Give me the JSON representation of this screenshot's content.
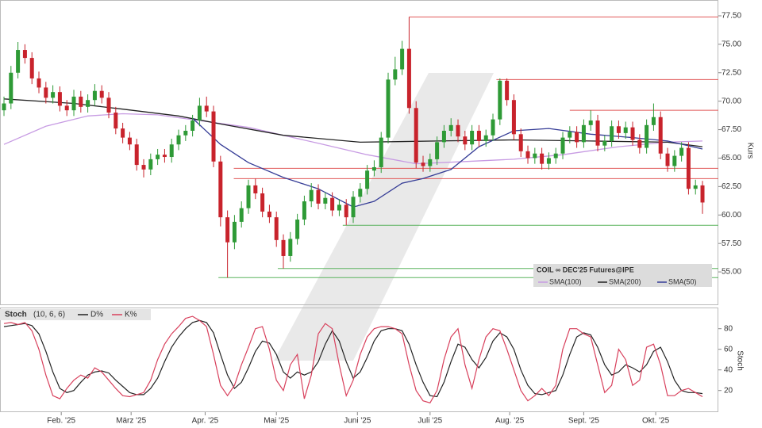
{
  "chart_data": [
    {
      "type": "candlestick",
      "title": "COIL ∞ DEC'25 Futures@IPE",
      "ylabel": "Kurs",
      "up_color": "#2e9a36",
      "down_color": "#c8232c",
      "xlim": [
        -0.57,
        102.27
      ],
      "ylim": [
        52.08,
        78.89
      ],
      "yticks": [
        {
          "value": 55,
          "label": "55.00"
        },
        {
          "value": 57.5,
          "label": "57.50"
        },
        {
          "value": 60,
          "label": "60.00"
        },
        {
          "value": 62.5,
          "label": "62.50"
        },
        {
          "value": 65,
          "label": "65.00"
        },
        {
          "value": 67.5,
          "label": "67.50"
        },
        {
          "value": 70,
          "label": "70.00"
        },
        {
          "value": 72.5,
          "label": "72.50"
        },
        {
          "value": 75,
          "label": "75.00"
        },
        {
          "value": 77.5,
          "label": "77.50"
        }
      ],
      "open": [
        69.2,
        69.8,
        72.5,
        74.5,
        73.8,
        72.0,
        71.2,
        70.3,
        70.8,
        69.6,
        69.2,
        70.4,
        69.5,
        70.1,
        70.9,
        70.3,
        69.0,
        67.6,
        66.8,
        66.2,
        64.4,
        64.0,
        64.9,
        65.3,
        65.1,
        66.2,
        67.0,
        67.4,
        68.3,
        69.6,
        69.1,
        64.7,
        59.8,
        57.6,
        59.4,
        60.6,
        62.6,
        61.9,
        60.3,
        59.8,
        57.8,
        56.4,
        57.9,
        59.6,
        61.2,
        62.2,
        61.0,
        61.5,
        60.4,
        60.9,
        59.8,
        61.6,
        62.3,
        63.9,
        64.2,
        66.8,
        71.9,
        72.8,
        74.6,
        69.4,
        64.6,
        64.3,
        64.9,
        66.4,
        67.4,
        67.9,
        66.9,
        66.2,
        67.4,
        66.5,
        67.0,
        68.4,
        71.8,
        70.1,
        67.1,
        65.6,
        65.0,
        65.4,
        64.5,
        65.0,
        65.4,
        66.8,
        67.3,
        66.4,
        67.9,
        68.3,
        66.1,
        66.5,
        67.8,
        67.2,
        67.7,
        66.6,
        65.9,
        67.9,
        68.6,
        65.4,
        64.3,
        65.2,
        65.9,
        62.3,
        62.6
      ],
      "high": [
        70.4,
        73.1,
        75.2,
        75.0,
        74.3,
        72.6,
        71.7,
        71.4,
        71.3,
        70.1,
        71.0,
        70.9,
        70.6,
        71.5,
        71.4,
        70.8,
        69.5,
        68.1,
        67.3,
        66.7,
        64.9,
        65.4,
        65.8,
        65.8,
        66.7,
        67.5,
        67.9,
        68.8,
        70.3,
        70.4,
        69.6,
        65.2,
        60.4,
        60.0,
        61.2,
        63.1,
        63.2,
        62.4,
        60.9,
        60.3,
        58.3,
        58.5,
        60.1,
        61.7,
        62.8,
        62.7,
        62.0,
        62.0,
        61.4,
        61.4,
        62.1,
        62.8,
        64.4,
        64.8,
        67.3,
        72.5,
        73.9,
        75.3,
        77.4,
        70.0,
        65.2,
        65.4,
        66.9,
        67.9,
        68.5,
        68.4,
        67.4,
        67.9,
        67.9,
        67.5,
        68.9,
        72.0,
        72.0,
        70.6,
        67.6,
        66.1,
        65.9,
        65.9,
        65.5,
        65.9,
        67.3,
        67.8,
        67.8,
        68.4,
        69.2,
        68.8,
        67.0,
        68.3,
        68.3,
        68.2,
        68.2,
        67.1,
        68.4,
        69.8,
        69.1,
        65.9,
        65.7,
        66.4,
        66.4,
        63.1,
        63.0
      ],
      "low": [
        68.7,
        69.3,
        72.0,
        73.3,
        71.5,
        70.7,
        69.8,
        69.8,
        69.1,
        68.7,
        68.7,
        69.0,
        69.0,
        69.6,
        69.8,
        68.5,
        67.1,
        66.3,
        65.7,
        63.9,
        63.3,
        63.5,
        64.4,
        64.6,
        64.6,
        65.7,
        66.5,
        66.9,
        67.8,
        68.6,
        64.2,
        59.0,
        54.5,
        57.0,
        58.9,
        60.1,
        61.4,
        59.8,
        59.3,
        57.2,
        55.3,
        55.9,
        57.4,
        59.1,
        60.7,
        60.5,
        60.5,
        59.9,
        59.9,
        59.1,
        59.3,
        61.1,
        61.8,
        63.4,
        63.7,
        66.3,
        71.4,
        72.3,
        68.9,
        64.1,
        63.8,
        63.8,
        64.4,
        65.9,
        66.9,
        66.4,
        65.7,
        65.7,
        66.0,
        66.0,
        66.5,
        67.9,
        69.6,
        66.6,
        65.1,
        64.5,
        64.5,
        64.0,
        64.0,
        64.5,
        64.9,
        66.3,
        65.9,
        65.9,
        67.4,
        65.6,
        65.6,
        66.0,
        66.7,
        66.7,
        66.1,
        65.4,
        65.4,
        67.4,
        64.9,
        63.8,
        63.8,
        64.7,
        61.8,
        61.8,
        60.1
      ],
      "close": [
        69.8,
        72.5,
        74.5,
        73.8,
        72.0,
        71.2,
        70.3,
        70.8,
        69.6,
        69.2,
        70.4,
        69.5,
        70.1,
        70.9,
        70.3,
        69.0,
        67.6,
        66.8,
        66.2,
        64.4,
        64.0,
        64.9,
        65.3,
        65.1,
        66.2,
        67.0,
        67.4,
        68.3,
        69.6,
        69.1,
        64.7,
        59.8,
        57.6,
        59.4,
        60.6,
        62.6,
        61.9,
        60.3,
        59.8,
        57.8,
        56.4,
        57.9,
        59.6,
        61.2,
        62.2,
        61.0,
        61.5,
        60.4,
        60.9,
        59.8,
        61.6,
        62.3,
        63.9,
        64.2,
        66.8,
        71.9,
        72.8,
        74.6,
        69.4,
        64.6,
        64.3,
        64.9,
        66.4,
        67.4,
        67.9,
        66.9,
        66.2,
        67.4,
        66.5,
        67.0,
        68.4,
        71.8,
        70.1,
        67.1,
        65.6,
        65.0,
        65.4,
        64.5,
        65.0,
        65.4,
        66.8,
        67.3,
        66.4,
        67.9,
        68.3,
        66.1,
        66.5,
        67.8,
        67.2,
        67.7,
        66.6,
        65.9,
        67.9,
        68.6,
        65.4,
        64.3,
        65.2,
        65.9,
        62.3,
        62.6,
        61.1
      ],
      "overlays": [
        {
          "name": "SMA(100)",
          "color": "#c79be3",
          "x": [
            0,
            6,
            12,
            17,
            22,
            28,
            35,
            45,
            52,
            59,
            66,
            73,
            80,
            88,
            95,
            100
          ],
          "values": [
            66.2,
            67.8,
            68.7,
            68.9,
            68.8,
            68.3,
            67.7,
            66.3,
            65.3,
            64.5,
            64.7,
            64.9,
            65.3,
            66.0,
            66.4,
            66.5
          ]
        },
        {
          "name": "SMA(200)",
          "color": "#222222",
          "x": [
            0,
            10,
            17,
            25,
            31,
            40,
            51,
            62,
            73,
            84,
            95,
            100
          ],
          "values": [
            70.2,
            69.8,
            69.3,
            68.7,
            68.0,
            67.0,
            66.4,
            66.5,
            66.6,
            66.5,
            66.4,
            66.0
          ]
        },
        {
          "name": "SMA(50)",
          "color": "#353c96",
          "x": [
            27,
            31,
            35,
            40,
            45,
            50,
            53,
            57,
            60,
            64,
            68,
            73,
            78,
            84,
            90,
            95,
            100
          ],
          "values": [
            68.5,
            66.2,
            64.6,
            63.3,
            62.3,
            60.7,
            61.2,
            62.8,
            63.2,
            64.0,
            66.0,
            67.4,
            67.6,
            67.1,
            66.8,
            66.5,
            65.8
          ]
        }
      ],
      "levels": [
        {
          "value": 77.4,
          "from": 58,
          "color": "#e05858"
        },
        {
          "value": 71.9,
          "from": 70.5,
          "color": "#e05858"
        },
        {
          "value": 69.2,
          "from": 81,
          "color": "#e05858"
        },
        {
          "value": 64.1,
          "from": 32.9,
          "color": "#e05858"
        },
        {
          "value": 63.2,
          "from": 32.9,
          "color": "#e05858"
        },
        {
          "value": 59.1,
          "from": 48.5,
          "color": "#5bb35f"
        },
        {
          "value": 55.3,
          "from": 39.2,
          "color": "#5bb35f"
        },
        {
          "value": 54.5,
          "from": 30.7,
          "color": "#5bb35f"
        }
      ]
    },
    {
      "type": "line",
      "title": "Stoch",
      "subtitle": "(10, 6, 6)",
      "ylabel": "Stoch",
      "xlim": [
        -0.57,
        102.27
      ],
      "ylim": [
        -1,
        99
      ],
      "yticks": [
        20,
        40,
        60,
        80
      ],
      "xticks": [
        {
          "value": 8.2,
          "label": "Feb. '25"
        },
        {
          "value": 18.2,
          "label": "März '25"
        },
        {
          "value": 28.8,
          "label": "Apr. '25"
        },
        {
          "value": 39.0,
          "label": "Mai '25"
        },
        {
          "value": 50.6,
          "label": "Juni '25"
        },
        {
          "value": 61.0,
          "label": "Juli '25"
        },
        {
          "value": 72.4,
          "label": "Aug. '25"
        },
        {
          "value": 83.0,
          "label": "Sept. '25"
        },
        {
          "value": 93.3,
          "label": "Okt. '25"
        }
      ],
      "series": [
        {
          "name": "D%",
          "color": "#222222",
          "values": [
            82,
            83,
            84,
            85,
            83,
            75,
            58,
            38,
            22,
            18,
            20,
            28,
            35,
            38,
            39,
            37,
            30,
            24,
            18,
            16,
            16,
            22,
            32,
            48,
            62,
            72,
            80,
            86,
            88,
            86,
            76,
            55,
            35,
            22,
            28,
            42,
            58,
            68,
            66,
            55,
            38,
            32,
            38,
            35,
            38,
            48,
            65,
            78,
            68,
            48,
            32,
            38,
            52,
            68,
            78,
            80,
            80,
            78,
            65,
            45,
            28,
            15,
            14,
            28,
            48,
            65,
            62,
            50,
            42,
            52,
            68,
            76,
            72,
            60,
            40,
            25,
            17,
            16,
            18,
            20,
            35,
            55,
            72,
            76,
            74,
            62,
            45,
            35,
            38,
            45,
            42,
            38,
            45,
            58,
            62,
            48,
            30,
            20,
            18,
            18,
            17
          ]
        },
        {
          "name": "K%",
          "color": "#d8405c",
          "values": [
            85,
            86,
            84,
            86,
            78,
            60,
            35,
            15,
            12,
            22,
            30,
            35,
            32,
            42,
            38,
            30,
            22,
            15,
            14,
            16,
            18,
            30,
            50,
            65,
            75,
            82,
            90,
            92,
            88,
            82,
            55,
            25,
            15,
            25,
            45,
            62,
            80,
            82,
            60,
            30,
            20,
            45,
            55,
            12,
            35,
            75,
            85,
            80,
            45,
            15,
            30,
            55,
            72,
            80,
            82,
            82,
            80,
            75,
            45,
            20,
            10,
            8,
            20,
            50,
            72,
            80,
            45,
            22,
            50,
            72,
            80,
            78,
            60,
            40,
            20,
            10,
            15,
            22,
            15,
            25,
            60,
            80,
            80,
            75,
            72,
            45,
            18,
            25,
            60,
            50,
            25,
            30,
            62,
            65,
            45,
            15,
            15,
            20,
            22,
            18,
            14
          ]
        }
      ]
    }
  ]
}
